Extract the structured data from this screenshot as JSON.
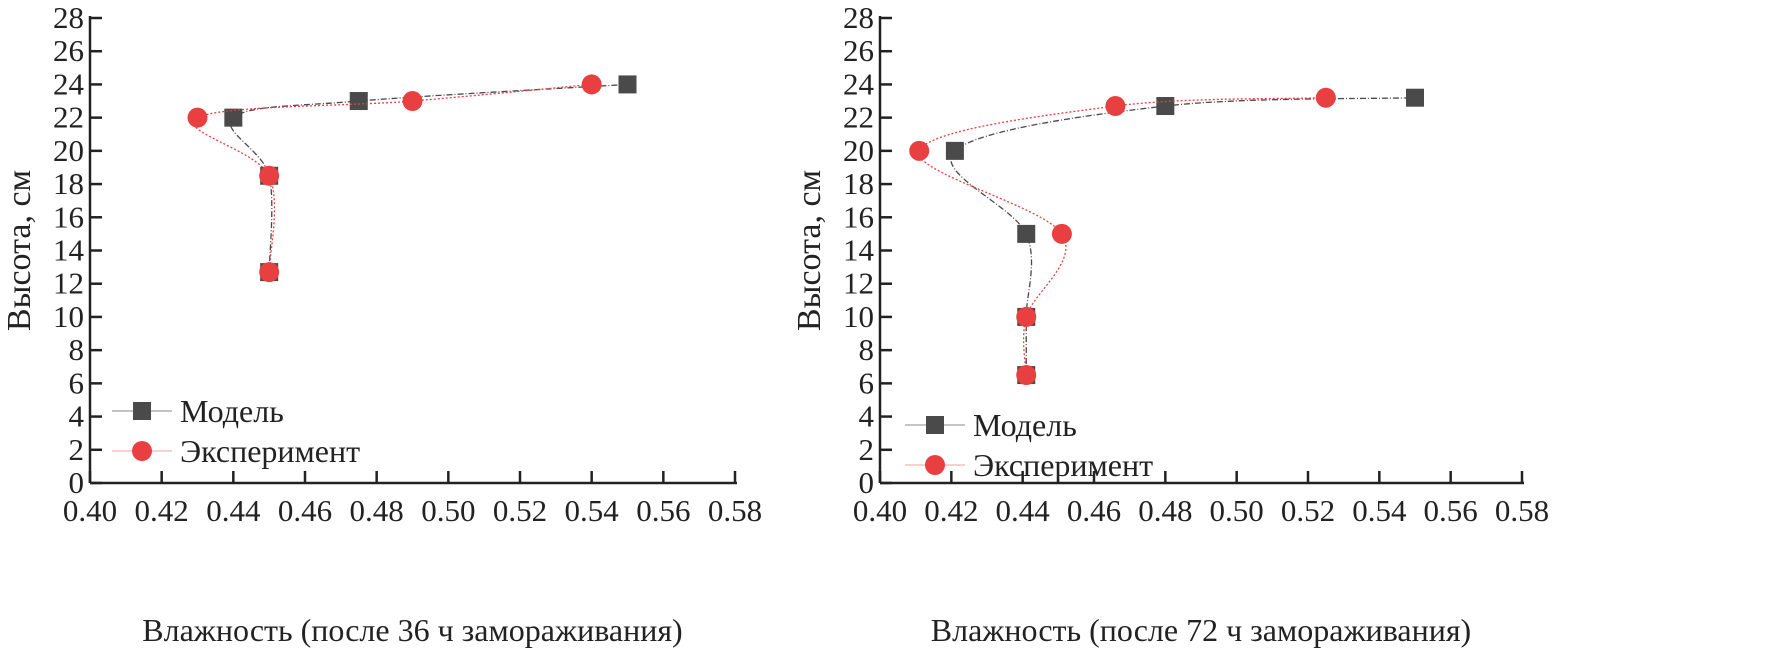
{
  "chart_data": [
    {
      "type": "line",
      "xlabel": "Влажность (после 36 ч замораживания)",
      "ylabel": "Высота, см",
      "xlim": [
        0.4,
        0.58
      ],
      "ylim": [
        0,
        28
      ],
      "xticks": [
        "0.40",
        "0.42",
        "0.44",
        "0.46",
        "0.48",
        "0.50",
        "0.52",
        "0.54",
        "0.56",
        "0.58"
      ],
      "yticks": [
        "0",
        "2",
        "4",
        "6",
        "8",
        "10",
        "12",
        "14",
        "16",
        "18",
        "20",
        "22",
        "24",
        "26",
        "28"
      ],
      "grid": false,
      "legend": "bottom-left",
      "series": [
        {
          "name": "Модель",
          "marker": "square",
          "color": "#4a4a4a",
          "points": [
            [
              0.45,
              12.7
            ],
            [
              0.45,
              18.5
            ],
            [
              0.44,
              22
            ],
            [
              0.475,
              23
            ],
            [
              0.55,
              24
            ]
          ]
        },
        {
          "name": "Эксперимент",
          "marker": "circle",
          "color": "#e84040",
          "points": [
            [
              0.45,
              12.7
            ],
            [
              0.45,
              18.5
            ],
            [
              0.43,
              22
            ],
            [
              0.49,
              23
            ],
            [
              0.54,
              24
            ]
          ]
        }
      ]
    },
    {
      "type": "line",
      "xlabel": "Влажность (после 72 ч замораживания)",
      "ylabel": "Высота, см",
      "xlim": [
        0.4,
        0.58
      ],
      "ylim": [
        0,
        28
      ],
      "xticks": [
        "0.40",
        "0.42",
        "0.44",
        "0.46",
        "0.48",
        "0.50",
        "0.52",
        "0.54",
        "0.56",
        "0.58"
      ],
      "yticks": [
        "0",
        "2",
        "4",
        "6",
        "8",
        "10",
        "12",
        "14",
        "16",
        "18",
        "20",
        "22",
        "24",
        "26",
        "28"
      ],
      "grid": false,
      "legend": "bottom-left",
      "series": [
        {
          "name": "Модель",
          "marker": "square",
          "color": "#4a4a4a",
          "points": [
            [
              0.441,
              6.5
            ],
            [
              0.441,
              10
            ],
            [
              0.441,
              15
            ],
            [
              0.421,
              20
            ],
            [
              0.48,
              22.7
            ],
            [
              0.55,
              23.2
            ]
          ]
        },
        {
          "name": "Эксперимент",
          "marker": "circle",
          "color": "#e84040",
          "points": [
            [
              0.441,
              6.5
            ],
            [
              0.441,
              10
            ],
            [
              0.451,
              15
            ],
            [
              0.411,
              20
            ],
            [
              0.466,
              22.7
            ],
            [
              0.525,
              23.2
            ]
          ]
        }
      ]
    }
  ]
}
